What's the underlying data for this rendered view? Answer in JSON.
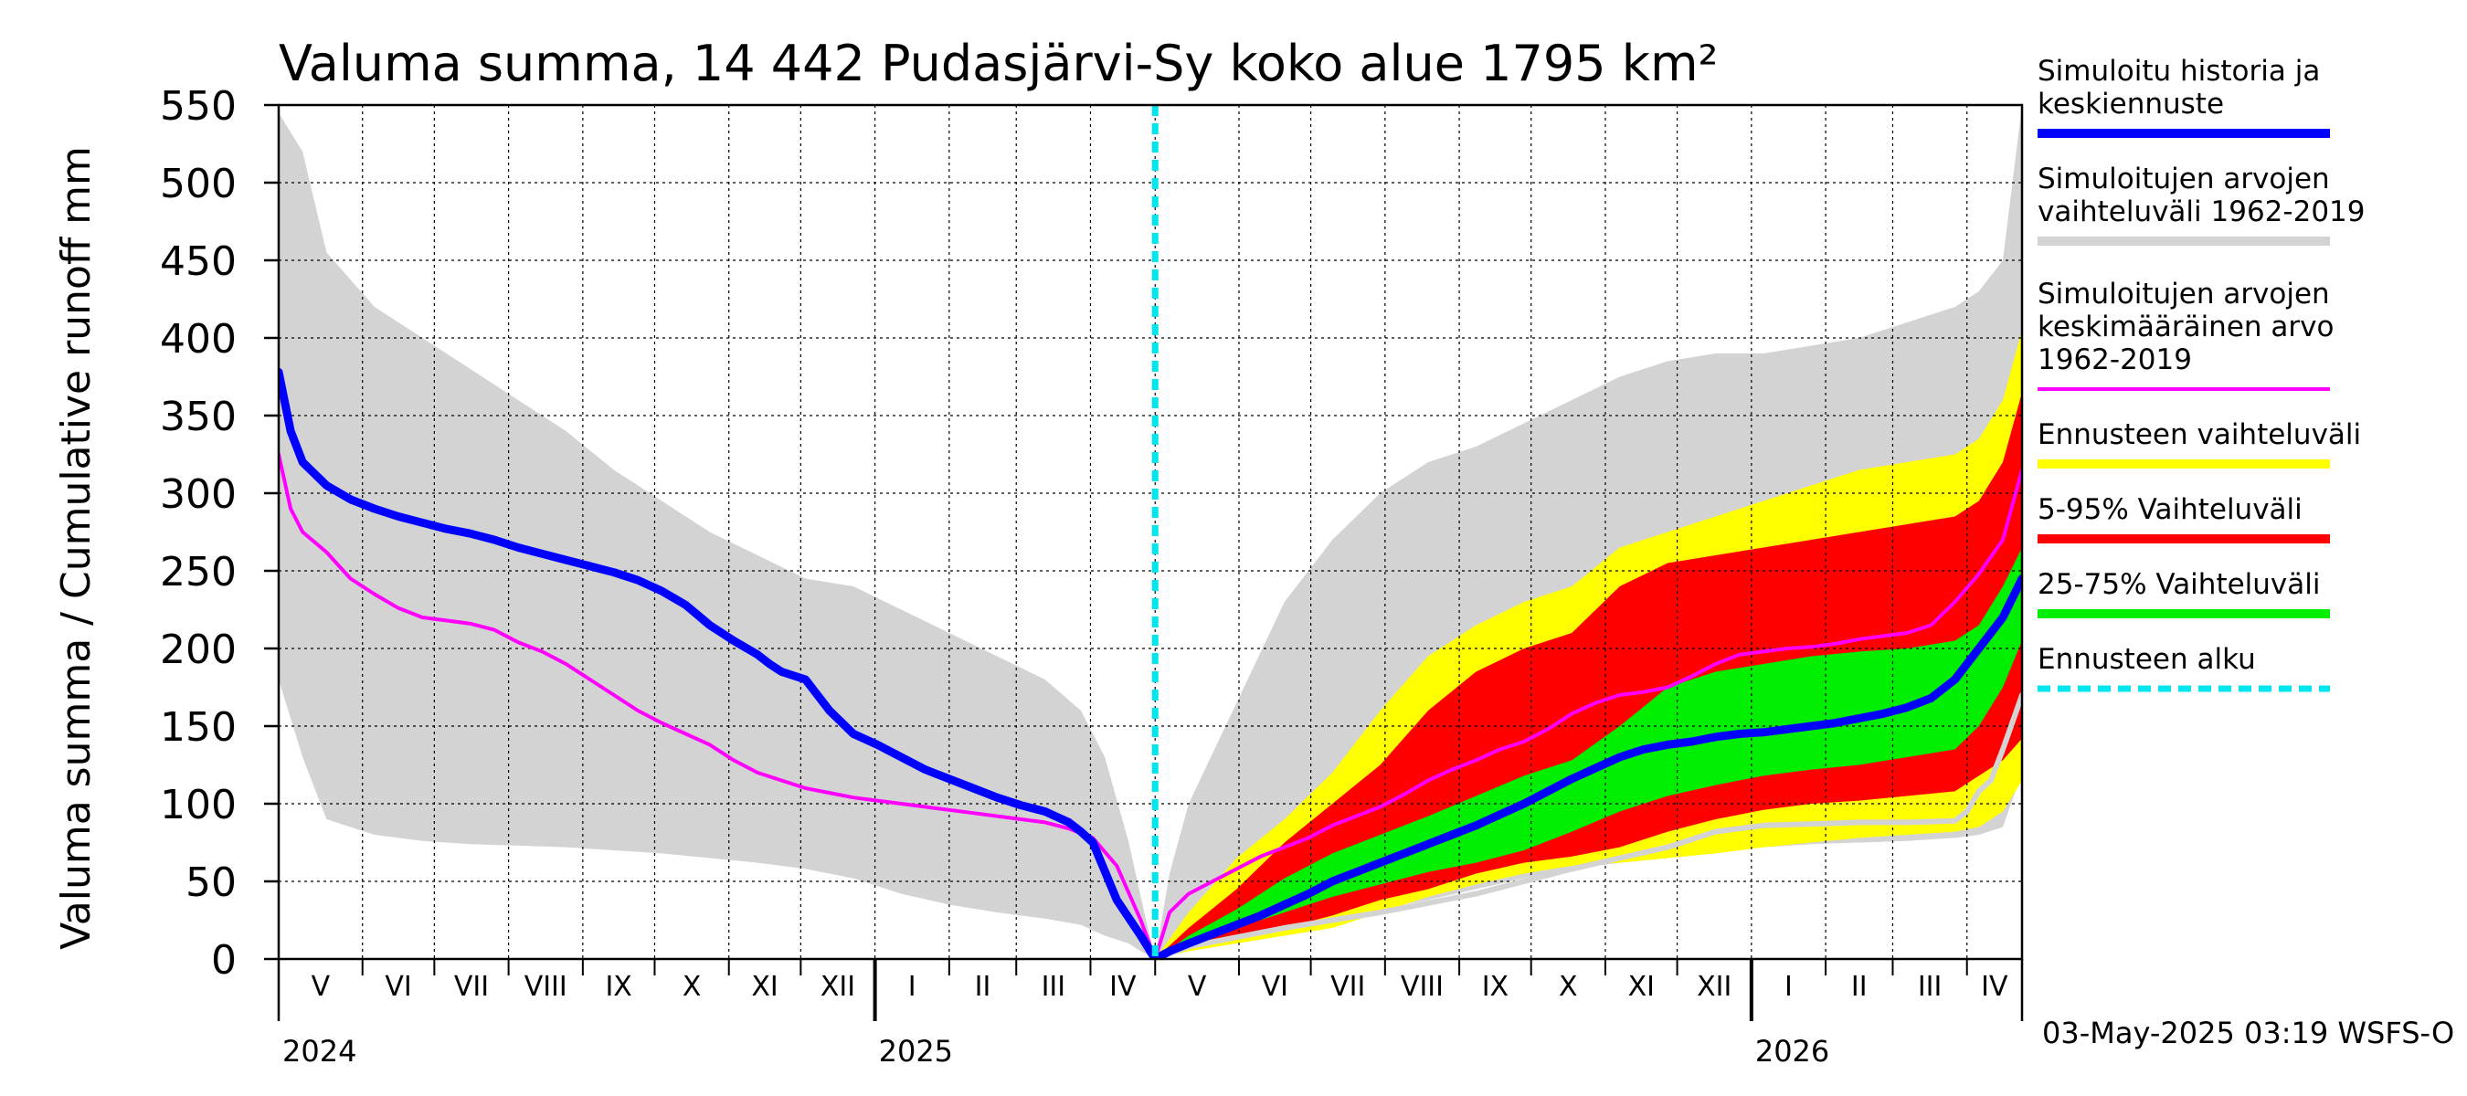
{
  "chart_data": {
    "type": "area",
    "title": "Valuma summa, 14 442 Pudasjärvi-Sy koko alue 1795 km²",
    "ylabel": "Valuma summa / Cumulative runoff    mm",
    "xlabel": "",
    "ylim": [
      0,
      550
    ],
    "yticks": [
      0,
      50,
      100,
      150,
      200,
      250,
      300,
      350,
      400,
      450,
      500,
      550
    ],
    "grid": true,
    "x_unit": "days since 2024-04-27",
    "xlim": [
      0,
      728
    ],
    "forecast_start_day": 366,
    "months": [
      {
        "label": "V",
        "start": 0,
        "end": 35
      },
      {
        "label": "VI",
        "start": 35,
        "end": 65
      },
      {
        "label": "VII",
        "start": 65,
        "end": 96
      },
      {
        "label": "VIII",
        "start": 96,
        "end": 127
      },
      {
        "label": "IX",
        "start": 127,
        "end": 157
      },
      {
        "label": "X",
        "start": 157,
        "end": 188
      },
      {
        "label": "XI",
        "start": 188,
        "end": 218
      },
      {
        "label": "XII",
        "start": 218,
        "end": 249
      },
      {
        "label": "I",
        "start": 249,
        "end": 280
      },
      {
        "label": "II",
        "start": 280,
        "end": 308
      },
      {
        "label": "III",
        "start": 308,
        "end": 339
      },
      {
        "label": "IV",
        "start": 339,
        "end": 366
      },
      {
        "label": "V",
        "start": 366,
        "end": 401
      },
      {
        "label": "VI",
        "start": 401,
        "end": 431
      },
      {
        "label": "VII",
        "start": 431,
        "end": 462
      },
      {
        "label": "VIII",
        "start": 462,
        "end": 493
      },
      {
        "label": "IX",
        "start": 493,
        "end": 523
      },
      {
        "label": "X",
        "start": 523,
        "end": 554
      },
      {
        "label": "XI",
        "start": 554,
        "end": 584
      },
      {
        "label": "XII",
        "start": 584,
        "end": 615
      },
      {
        "label": "I",
        "start": 615,
        "end": 646
      },
      {
        "label": "II",
        "start": 646,
        "end": 674
      },
      {
        "label": "III",
        "start": 674,
        "end": 705
      },
      {
        "label": "IV",
        "start": 705,
        "end": 728
      }
    ],
    "year_boundaries": [
      249,
      615
    ],
    "years": [
      {
        "label": "2024",
        "day": 0
      },
      {
        "label": "2025",
        "day": 249
      },
      {
        "label": "2026",
        "day": 615
      }
    ],
    "series": [
      {
        "name": "Simuloitujen arvojen vaihteluväli 1962-2019",
        "kind": "band",
        "color": "#d3d3d3",
        "x": [
          0,
          10,
          20,
          40,
          60,
          80,
          100,
          120,
          140,
          160,
          180,
          200,
          220,
          240,
          260,
          280,
          300,
          320,
          335,
          345,
          355,
          360,
          366,
          372,
          380,
          400,
          420,
          440,
          460,
          480,
          500,
          520,
          540,
          560,
          580,
          600,
          620,
          640,
          660,
          680,
          700,
          710,
          720,
          728
        ],
        "upper": [
          545,
          520,
          455,
          420,
          400,
          380,
          360,
          340,
          315,
          295,
          275,
          260,
          245,
          240,
          225,
          210,
          195,
          180,
          160,
          130,
          75,
          40,
          0,
          55,
          100,
          165,
          230,
          270,
          300,
          320,
          330,
          345,
          360,
          375,
          385,
          390,
          390,
          395,
          400,
          410,
          420,
          430,
          450,
          550
        ],
        "lower": [
          180,
          130,
          90,
          80,
          76,
          74,
          73,
          72,
          70,
          68,
          65,
          62,
          58,
          52,
          42,
          35,
          30,
          26,
          22,
          15,
          10,
          5,
          0,
          3,
          6,
          12,
          18,
          25,
          32,
          38,
          45,
          52,
          58,
          62,
          65,
          70,
          72,
          74,
          75,
          76,
          78,
          80,
          85,
          120
        ]
      },
      {
        "name": "Ennusteen vaihteluväli",
        "kind": "band",
        "color": "#ffff00",
        "x": [
          366,
          380,
          400,
          420,
          440,
          460,
          480,
          500,
          520,
          540,
          560,
          580,
          600,
          620,
          640,
          660,
          680,
          700,
          710,
          720,
          728
        ],
        "upper": [
          0,
          30,
          65,
          90,
          120,
          160,
          195,
          215,
          230,
          240,
          265,
          275,
          285,
          295,
          305,
          315,
          320,
          325,
          335,
          360,
          405
        ],
        "lower": [
          0,
          5,
          10,
          15,
          20,
          30,
          40,
          48,
          55,
          60,
          62,
          65,
          68,
          72,
          75,
          78,
          80,
          82,
          85,
          95,
          115
        ]
      },
      {
        "name": "5-95% Vaihteluväli",
        "kind": "band",
        "color": "#ff0000",
        "x": [
          366,
          380,
          400,
          420,
          440,
          460,
          480,
          500,
          520,
          540,
          560,
          580,
          600,
          620,
          640,
          660,
          680,
          700,
          710,
          720,
          728
        ],
        "upper": [
          0,
          20,
          45,
          75,
          100,
          125,
          160,
          185,
          200,
          210,
          240,
          255,
          260,
          265,
          270,
          275,
          280,
          285,
          295,
          320,
          365
        ],
        "lower": [
          0,
          8,
          14,
          20,
          28,
          38,
          45,
          55,
          62,
          66,
          72,
          82,
          90,
          96,
          100,
          102,
          105,
          108,
          118,
          128,
          142
        ]
      },
      {
        "name": "25-75% Vaihteluväli",
        "kind": "band",
        "color": "#00ee00",
        "x": [
          366,
          380,
          400,
          420,
          440,
          460,
          480,
          500,
          520,
          540,
          560,
          580,
          600,
          620,
          640,
          660,
          680,
          700,
          710,
          720,
          728
        ],
        "upper": [
          0,
          15,
          32,
          52,
          68,
          80,
          92,
          105,
          118,
          128,
          150,
          175,
          185,
          190,
          195,
          198,
          200,
          205,
          215,
          240,
          265
        ],
        "lower": [
          0,
          10,
          20,
          30,
          40,
          48,
          56,
          62,
          70,
          82,
          95,
          105,
          112,
          118,
          122,
          125,
          130,
          135,
          150,
          175,
          205
        ]
      },
      {
        "name": "Simuloitujen arvojen keskimääräinen arvo 1962-2019",
        "kind": "line",
        "color": "#ff00ff",
        "width": 4,
        "x": [
          0,
          5,
          10,
          20,
          30,
          40,
          50,
          60,
          70,
          80,
          90,
          100,
          110,
          120,
          130,
          140,
          150,
          160,
          170,
          180,
          190,
          200,
          210,
          220,
          230,
          240,
          250,
          260,
          270,
          280,
          290,
          300,
          310,
          320,
          330,
          340,
          350,
          360,
          366,
          372,
          380,
          390,
          400,
          410,
          420,
          430,
          440,
          450,
          460,
          470,
          480,
          490,
          500,
          510,
          520,
          530,
          540,
          550,
          560,
          570,
          580,
          590,
          600,
          610,
          620,
          630,
          640,
          650,
          660,
          670,
          680,
          690,
          700,
          710,
          720,
          728
        ],
        "y": [
          325,
          290,
          275,
          262,
          245,
          235,
          226,
          220,
          218,
          216,
          212,
          204,
          198,
          190,
          180,
          170,
          160,
          152,
          145,
          138,
          128,
          120,
          115,
          110,
          107,
          104,
          102,
          100,
          98,
          96,
          94,
          92,
          90,
          88,
          84,
          78,
          60,
          25,
          0,
          30,
          42,
          50,
          58,
          66,
          72,
          78,
          86,
          92,
          98,
          106,
          115,
          122,
          128,
          135,
          140,
          148,
          158,
          165,
          170,
          172,
          175,
          182,
          190,
          196,
          198,
          200,
          201,
          203,
          206,
          208,
          210,
          215,
          230,
          248,
          270,
          315
        ]
      },
      {
        "name": "Simuloitu historia ja keskiennuste",
        "kind": "line",
        "color": "#0000ff",
        "width": 9,
        "x": [
          0,
          5,
          10,
          20,
          30,
          40,
          50,
          60,
          70,
          80,
          90,
          100,
          110,
          120,
          130,
          140,
          150,
          160,
          170,
          180,
          190,
          200,
          205,
          210,
          220,
          230,
          240,
          250,
          260,
          270,
          280,
          290,
          300,
          310,
          320,
          330,
          335,
          340,
          350,
          360,
          366,
          372,
          380,
          390,
          400,
          410,
          420,
          430,
          440,
          450,
          460,
          470,
          480,
          490,
          500,
          510,
          520,
          530,
          540,
          550,
          560,
          570,
          580,
          590,
          600,
          610,
          620,
          630,
          640,
          650,
          660,
          670,
          680,
          690,
          700,
          710,
          720,
          728
        ],
        "y": [
          378,
          340,
          320,
          305,
          296,
          290,
          285,
          281,
          277,
          274,
          270,
          265,
          261,
          257,
          253,
          249,
          244,
          237,
          228,
          215,
          205,
          196,
          190,
          185,
          180,
          160,
          145,
          138,
          130,
          122,
          116,
          110,
          104,
          99,
          95,
          88,
          82,
          75,
          38,
          15,
          0,
          5,
          10,
          16,
          22,
          28,
          35,
          42,
          50,
          56,
          62,
          68,
          74,
          80,
          86,
          93,
          100,
          108,
          116,
          123,
          130,
          135,
          138,
          140,
          143,
          145,
          146,
          148,
          150,
          152,
          155,
          158,
          162,
          168,
          180,
          200,
          220,
          245
        ]
      },
      {
        "name": "Minimum forecast",
        "kind": "line",
        "color": "#d3d3d3",
        "width": 6,
        "x": [
          366,
          380,
          400,
          420,
          440,
          460,
          480,
          500,
          520,
          540,
          560,
          580,
          600,
          620,
          640,
          660,
          680,
          700,
          705,
          710,
          715,
          720,
          728
        ],
        "y": [
          0,
          8,
          14,
          20,
          25,
          30,
          36,
          42,
          50,
          58,
          65,
          72,
          82,
          86,
          87,
          88,
          88,
          89,
          95,
          108,
          115,
          135,
          170
        ]
      }
    ],
    "forecast_start_line": {
      "name": "Ennusteen alku",
      "color": "#00e5ee",
      "x": 366
    }
  },
  "header": {
    "title": "Valuma summa, 14 442 Pudasjärvi-Sy koko alue 1795 km²"
  },
  "legend": {
    "items": [
      {
        "lines": [
          "Simuloitu historia ja",
          "keskiennuste"
        ],
        "color": "#0000ff",
        "style": "solid-thick"
      },
      {
        "lines": [
          "Simuloitujen arvojen",
          "vaihteluväli 1962-2019"
        ],
        "color": "#d3d3d3",
        "style": "solid-thick"
      },
      {
        "lines": [
          "Simuloitujen arvojen",
          "keskimääräinen arvo",
          "   1962-2019"
        ],
        "color": "#ff00ff",
        "style": "solid-thin"
      },
      {
        "lines": [
          "Ennusteen vaihteluväli"
        ],
        "color": "#ffff00",
        "style": "solid-thick"
      },
      {
        "lines": [
          "5-95% Vaihteluväli"
        ],
        "color": "#ff0000",
        "style": "solid-thick"
      },
      {
        "lines": [
          "25-75% Vaihteluväli"
        ],
        "color": "#00ee00",
        "style": "solid-thick"
      },
      {
        "lines": [
          "Ennusteen alku"
        ],
        "color": "#00e5ee",
        "style": "dashed"
      }
    ]
  },
  "footer": {
    "timestamp": "03-May-2025 03:19 WSFS-O"
  }
}
